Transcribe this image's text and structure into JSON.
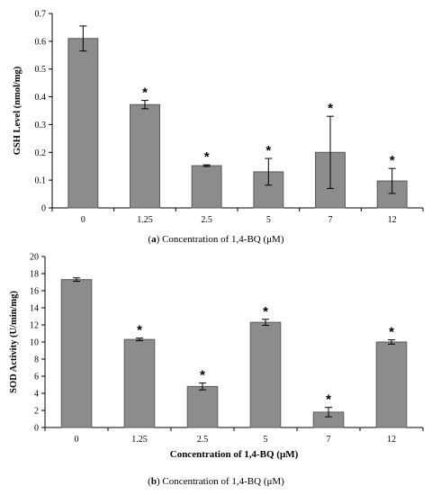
{
  "charts": [
    {
      "type": "bar",
      "categories": [
        "0",
        "1.25",
        "2.5",
        "5",
        "7",
        "12"
      ],
      "values": [
        0.61,
        0.372,
        0.152,
        0.13,
        0.2,
        0.097
      ],
      "errors": [
        0.045,
        0.015,
        0.003,
        0.048,
        0.13,
        0.045
      ],
      "significance": [
        "",
        "*",
        "*",
        "*",
        "*",
        "*"
      ],
      "ylabel": "GSH Level (nmol/mg)",
      "xlabel": "",
      "ylim": [
        0,
        0.7
      ],
      "yticks": [
        "0",
        "0.1",
        "0.2",
        "0.3",
        "0.4",
        "0.5",
        "0.6",
        "0.7"
      ],
      "caption_letter": "a",
      "caption_text": "Concentration of 1,4-BQ (μM)"
    },
    {
      "type": "bar",
      "categories": [
        "0",
        "1.25",
        "2.5",
        "5",
        "7",
        "12"
      ],
      "values": [
        17.3,
        10.3,
        4.8,
        12.3,
        1.8,
        10.0
      ],
      "errors": [
        0.2,
        0.15,
        0.4,
        0.35,
        0.55,
        0.25
      ],
      "significance": [
        "",
        "*",
        "*",
        "*",
        "*",
        "*"
      ],
      "ylabel": "SOD Activity (U/min/mg)",
      "xlabel": "Concentration of 1,4-BQ (μM)",
      "ylim": [
        0,
        20
      ],
      "yticks": [
        "0",
        "2",
        "4",
        "6",
        "8",
        "10",
        "12",
        "14",
        "16",
        "18",
        "20"
      ],
      "caption_letter": "b",
      "caption_text": "Concentration of 1,4-BQ (μM)"
    }
  ],
  "colors": {
    "bar": "#8c8c8c",
    "bar_edge": "#5a5a5a",
    "axis": "#000000"
  }
}
